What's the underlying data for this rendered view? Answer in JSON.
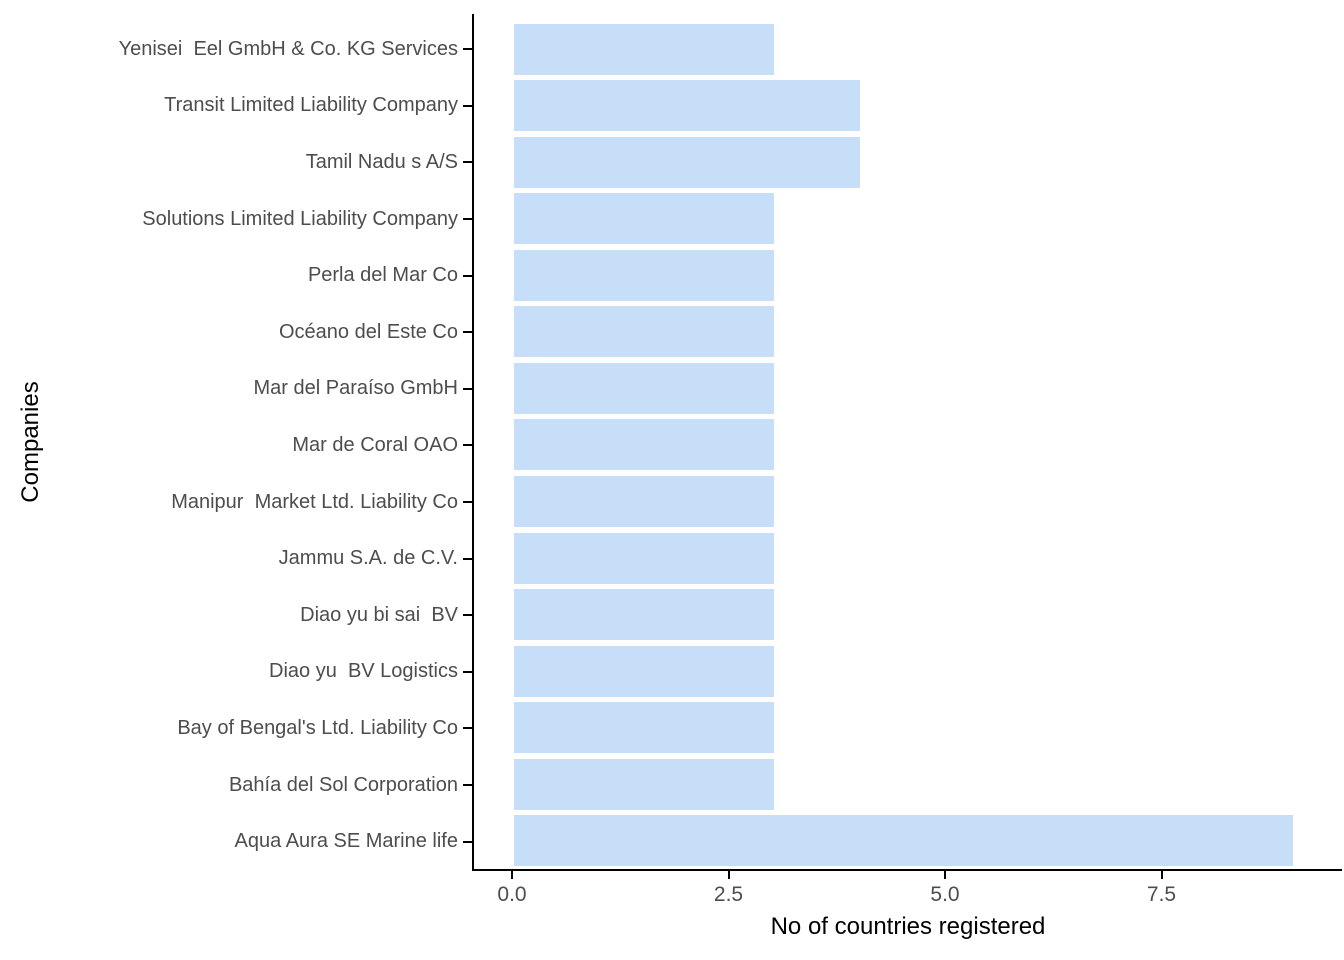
{
  "chart_data": {
    "type": "bar",
    "orientation": "horizontal",
    "title": "",
    "xlabel": "No of countries registered",
    "ylabel": "Companies",
    "categories": [
      "Yenisei  Eel GmbH & Co. KG Services",
      "Transit Limited Liability Company",
      "Tamil Nadu s A/S",
      "Solutions Limited Liability Company",
      "Perla del Mar Co",
      "Océano del Este Co",
      "Mar del Paraíso GmbH",
      "Mar de Coral OAO",
      "Manipur  Market Ltd. Liability Co",
      "Jammu S.A. de C.V.",
      "Diao yu bi sai  BV",
      "Diao yu  BV Logistics",
      "Bay of Bengal's Ltd. Liability Co",
      "Bahía del Sol Corporation",
      "Aqua Aura SE Marine life"
    ],
    "values": [
      3,
      4,
      4,
      3,
      3,
      3,
      3,
      3,
      3,
      3,
      3,
      3,
      3,
      3,
      9
    ],
    "x_ticks": [
      {
        "value": 0.0,
        "label": "0.0"
      },
      {
        "value": 2.5,
        "label": "2.5"
      },
      {
        "value": 5.0,
        "label": "5.0"
      },
      {
        "value": 7.5,
        "label": "7.5"
      }
    ],
    "xlim": [
      0,
      9.56
    ],
    "grid": false,
    "legend_position": "none",
    "colors": {
      "bar_fill": "#C6DEF8",
      "axis_line": "#000000",
      "axis_title": "#000000",
      "tick_label": "#4D4D4D",
      "category_label": "#4D4D4D",
      "background": "#FFFFFF"
    }
  }
}
